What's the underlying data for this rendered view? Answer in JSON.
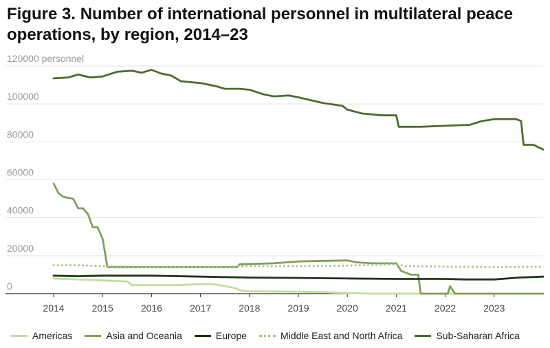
{
  "title": "Figure 3. Number of international personnel in multilateral peace operations, by region, 2014–23",
  "chart_data": {
    "type": "line",
    "title": "Figure 3. Number of international personnel in multilateral peace operations, by region, 2014–23",
    "ylabel": "personnel",
    "ylim": [
      0,
      120000
    ],
    "yticks": [
      0,
      20000,
      40000,
      60000,
      80000,
      100000,
      120000
    ],
    "xlim": [
      2014,
      2024
    ],
    "xticks": [
      2014,
      2015,
      2016,
      2017,
      2018,
      2019,
      2020,
      2021,
      2022,
      2023
    ],
    "grid": "horizontal",
    "legend_position": "bottom",
    "series": [
      {
        "name": "Americas",
        "color": "#c5dba0",
        "style": "solid",
        "points": [
          [
            2014.0,
            8000
          ],
          [
            2014.5,
            7500
          ],
          [
            2015.0,
            7000
          ],
          [
            2015.5,
            6500
          ],
          [
            2015.6,
            4500
          ],
          [
            2016.0,
            4500
          ],
          [
            2016.5,
            4500
          ],
          [
            2017.0,
            5000
          ],
          [
            2017.25,
            5000
          ],
          [
            2017.5,
            4000
          ],
          [
            2017.7,
            3000
          ],
          [
            2017.85,
            1500
          ],
          [
            2018.0,
            1200
          ],
          [
            2019.0,
            1000
          ],
          [
            2019.5,
            800
          ],
          [
            2020.0,
            300
          ],
          [
            2020.5,
            0
          ],
          [
            2024.0,
            0
          ]
        ]
      },
      {
        "name": "Asia and Oceania",
        "color": "#7fa05a",
        "style": "solid",
        "points": [
          [
            2014.0,
            58000
          ],
          [
            2014.1,
            53000
          ],
          [
            2014.2,
            51000
          ],
          [
            2014.4,
            50000
          ],
          [
            2014.5,
            45000
          ],
          [
            2014.6,
            45000
          ],
          [
            2014.7,
            42000
          ],
          [
            2014.8,
            35000
          ],
          [
            2014.9,
            35000
          ],
          [
            2015.0,
            29000
          ],
          [
            2015.1,
            14000
          ],
          [
            2016.0,
            14000
          ],
          [
            2017.0,
            14000
          ],
          [
            2017.75,
            14000
          ],
          [
            2017.8,
            15500
          ],
          [
            2018.5,
            16000
          ],
          [
            2019.0,
            17000
          ],
          [
            2020.0,
            17500
          ],
          [
            2020.2,
            16500
          ],
          [
            2020.5,
            16000
          ],
          [
            2021.0,
            16000
          ],
          [
            2021.1,
            12000
          ],
          [
            2021.3,
            10000
          ],
          [
            2021.45,
            10000
          ],
          [
            2021.5,
            0
          ],
          [
            2022.05,
            0
          ],
          [
            2022.1,
            4000
          ],
          [
            2022.2,
            0
          ],
          [
            2024.0,
            0
          ]
        ]
      },
      {
        "name": "Europe",
        "color": "#1c3616",
        "style": "solid",
        "points": [
          [
            2014.0,
            9500
          ],
          [
            2014.5,
            9200
          ],
          [
            2015.0,
            9500
          ],
          [
            2016.0,
            9500
          ],
          [
            2017.0,
            9000
          ],
          [
            2018.0,
            8500
          ],
          [
            2019.0,
            8300
          ],
          [
            2020.0,
            8000
          ],
          [
            2021.0,
            7800
          ],
          [
            2022.0,
            7800
          ],
          [
            2022.4,
            7500
          ],
          [
            2023.0,
            7500
          ],
          [
            2023.5,
            8500
          ],
          [
            2024.0,
            9000
          ]
        ]
      },
      {
        "name": "Middle East and North Africa",
        "color": "#a8c486",
        "style": "dotted",
        "points": [
          [
            2014.0,
            15000
          ],
          [
            2014.5,
            15000
          ],
          [
            2015.0,
            14500
          ],
          [
            2016.0,
            14200
          ],
          [
            2017.0,
            14000
          ],
          [
            2018.0,
            14500
          ],
          [
            2019.0,
            14500
          ],
          [
            2020.0,
            14800
          ],
          [
            2021.0,
            15500
          ],
          [
            2021.2,
            14500
          ],
          [
            2022.0,
            14300
          ],
          [
            2023.0,
            14000
          ],
          [
            2024.0,
            14200
          ]
        ]
      },
      {
        "name": "Sub-Saharan Africa",
        "color": "#4d6b2c",
        "style": "solid",
        "points": [
          [
            2014.0,
            113500
          ],
          [
            2014.3,
            114000
          ],
          [
            2014.5,
            115500
          ],
          [
            2014.75,
            114000
          ],
          [
            2015.0,
            114500
          ],
          [
            2015.3,
            117000
          ],
          [
            2015.6,
            117500
          ],
          [
            2015.8,
            116500
          ],
          [
            2016.0,
            118000
          ],
          [
            2016.2,
            116000
          ],
          [
            2016.4,
            115000
          ],
          [
            2016.6,
            112000
          ],
          [
            2017.0,
            111000
          ],
          [
            2017.3,
            109500
          ],
          [
            2017.5,
            108000
          ],
          [
            2017.8,
            108000
          ],
          [
            2018.0,
            107500
          ],
          [
            2018.3,
            105000
          ],
          [
            2018.5,
            104000
          ],
          [
            2018.8,
            104500
          ],
          [
            2019.0,
            103500
          ],
          [
            2019.5,
            100500
          ],
          [
            2019.9,
            99000
          ],
          [
            2020.0,
            97000
          ],
          [
            2020.3,
            95000
          ],
          [
            2020.7,
            94000
          ],
          [
            2021.0,
            94000
          ],
          [
            2021.05,
            88000
          ],
          [
            2021.5,
            88000
          ],
          [
            2022.0,
            88500
          ],
          [
            2022.5,
            89000
          ],
          [
            2022.75,
            91000
          ],
          [
            2023.0,
            92000
          ],
          [
            2023.3,
            92000
          ],
          [
            2023.45,
            92000
          ],
          [
            2023.55,
            91000
          ],
          [
            2023.6,
            78500
          ],
          [
            2023.8,
            78500
          ],
          [
            2024.0,
            76000
          ]
        ]
      }
    ]
  }
}
